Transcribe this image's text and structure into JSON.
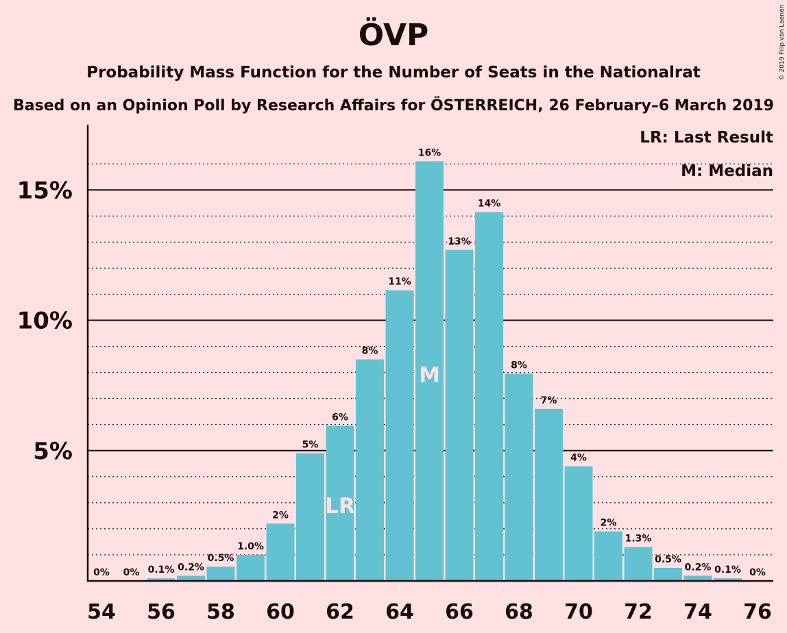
{
  "chart_data": {
    "type": "bar",
    "title": "ÖVP",
    "subtitle": "Probability Mass Function for the Number of Seats in the Nationalrat",
    "subtitle2": "Based on an Opinion Poll by Research Affairs for ÖSTERREICH, 26 February–6 March 2019",
    "copyright": "© 2019 Filip van Laenen",
    "legend": [
      "LR: Last Result",
      "M: Median"
    ],
    "legend_position": "top-right",
    "x": [
      54,
      55,
      56,
      57,
      58,
      59,
      60,
      61,
      62,
      63,
      64,
      65,
      66,
      67,
      68,
      69,
      70,
      71,
      72,
      73,
      74,
      75,
      76
    ],
    "values": [
      0,
      0,
      0.1,
      0.2,
      0.55,
      1.0,
      2.2,
      4.9,
      5.95,
      8.5,
      11.15,
      16.1,
      12.7,
      14.15,
      7.95,
      6.6,
      4.4,
      1.9,
      1.3,
      0.5,
      0.2,
      0.1,
      0
    ],
    "data_labels": [
      "0%",
      "0%",
      "0.1%",
      "0.2%",
      "0.5%",
      "1.0%",
      "2%",
      "5%",
      "6%",
      "8%",
      "11%",
      "16%",
      "13%",
      "14%",
      "8%",
      "7%",
      "4%",
      "2%",
      "1.3%",
      "0.5%",
      "0.2%",
      "0.1%",
      "0%"
    ],
    "x_ticks": [
      54,
      56,
      58,
      60,
      62,
      64,
      66,
      68,
      70,
      72,
      74,
      76
    ],
    "y_ticks": [
      {
        "value": 5,
        "label": "5%"
      },
      {
        "value": 10,
        "label": "10%"
      },
      {
        "value": 15,
        "label": "15%"
      }
    ],
    "minor_gridlines": [
      1,
      2,
      3,
      4,
      6,
      7,
      8,
      9,
      11,
      12,
      13,
      14,
      16
    ],
    "ylim": [
      0,
      17.5
    ],
    "last_result": {
      "x": 62,
      "label": "LR"
    },
    "median": {
      "x": 65,
      "label": "M"
    },
    "bar_color": "#63c2d1",
    "background_color": "#ffe1e3"
  }
}
